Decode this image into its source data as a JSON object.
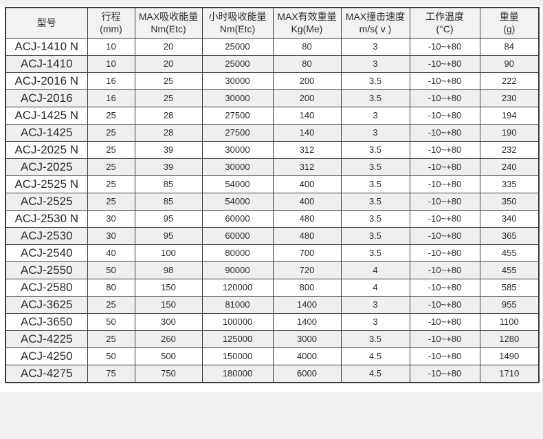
{
  "page": {
    "background_color": "#f1f1f1",
    "panel_color": "#ffffff"
  },
  "table": {
    "border_color": "#3b3b3b",
    "header_background": "#f2f2f2",
    "stripe_background": "#efefef",
    "columns": [
      {
        "title": "型号",
        "unit": ""
      },
      {
        "title": "行程",
        "unit": "(mm)"
      },
      {
        "title": "MAX吸收能量",
        "unit": "Nm(Etc)"
      },
      {
        "title": "小时吸收能量",
        "unit": "Nm(Etc)"
      },
      {
        "title": "MAX有效重量",
        "unit": "Kg(Me)"
      },
      {
        "title": "MAX撞击速度",
        "unit": "m/s( v )"
      },
      {
        "title": "工作温度",
        "unit": "(°C)"
      },
      {
        "title": "重量",
        "unit": "(g)"
      }
    ],
    "rows": [
      [
        "ACJ-1410 N",
        "10",
        "20",
        "25000",
        "80",
        "3",
        "-10~+80",
        "84"
      ],
      [
        "ACJ-1410",
        "10",
        "20",
        "25000",
        "80",
        "3",
        "-10~+80",
        "90"
      ],
      [
        "ACJ-2016 N",
        "16",
        "25",
        "30000",
        "200",
        "3.5",
        "-10~+80",
        "222"
      ],
      [
        "ACJ-2016",
        "16",
        "25",
        "30000",
        "200",
        "3.5",
        "-10~+80",
        "230"
      ],
      [
        "ACJ-1425 N",
        "25",
        "28",
        "27500",
        "140",
        "3",
        "-10~+80",
        "194"
      ],
      [
        "ACJ-1425",
        "25",
        "28",
        "27500",
        "140",
        "3",
        "-10~+80",
        "190"
      ],
      [
        "ACJ-2025 N",
        "25",
        "39",
        "30000",
        "312",
        "3.5",
        "-10~+80",
        "232"
      ],
      [
        "ACJ-2025",
        "25",
        "39",
        "30000",
        "312",
        "3.5",
        "-10~+80",
        "240"
      ],
      [
        "ACJ-2525 N",
        "25",
        "85",
        "54000",
        "400",
        "3.5",
        "-10~+80",
        "335"
      ],
      [
        "ACJ-2525",
        "25",
        "85",
        "54000",
        "400",
        "3.5",
        "-10~+80",
        "350"
      ],
      [
        "ACJ-2530 N",
        "30",
        "95",
        "60000",
        "480",
        "3.5",
        "-10~+80",
        "340"
      ],
      [
        "ACJ-2530",
        "30",
        "95",
        "60000",
        "480",
        "3.5",
        "-10~+80",
        "365"
      ],
      [
        "ACJ-2540",
        "40",
        "100",
        "80000",
        "700",
        "3.5",
        "-10~+80",
        "455"
      ],
      [
        "ACJ-2550",
        "50",
        "98",
        "90000",
        "720",
        "4",
        "-10~+80",
        "455"
      ],
      [
        "ACJ-2580",
        "80",
        "150",
        "120000",
        "800",
        "4",
        "-10~+80",
        "585"
      ],
      [
        "ACJ-3625",
        "25",
        "150",
        "81000",
        "1400",
        "3",
        "-10~+80",
        "955"
      ],
      [
        "ACJ-3650",
        "50",
        "300",
        "100000",
        "1400",
        "3",
        "-10~+80",
        "1100"
      ],
      [
        "ACJ-4225",
        "25",
        "260",
        "125000",
        "3000",
        "3.5",
        "-10~+80",
        "1280"
      ],
      [
        "ACJ-4250",
        "50",
        "500",
        "150000",
        "4000",
        "4.5",
        "-10~+80",
        "1490"
      ],
      [
        "ACJ-4275",
        "75",
        "750",
        "180000",
        "6000",
        "4.5",
        "-10~+80",
        "1710"
      ]
    ]
  }
}
